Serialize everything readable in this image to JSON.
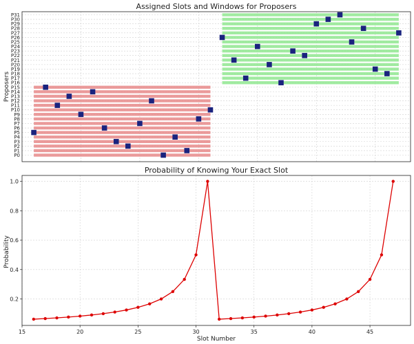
{
  "chart_data": [
    {
      "type": "scatter",
      "title": "Assigned Slots and Windows for Proposers",
      "xlabel": "",
      "ylabel": "Proposers",
      "xlim": [
        15,
        48
      ],
      "grid": true,
      "proposers": [
        "P0",
        "P1",
        "P2",
        "P3",
        "P4",
        "P5",
        "P6",
        "P7",
        "P8",
        "P9",
        "P10",
        "P11",
        "P12",
        "P13",
        "P14",
        "P15",
        "P16",
        "P17",
        "P18",
        "P19",
        "P20",
        "P21",
        "P22",
        "P23",
        "P24",
        "P25",
        "P26",
        "P27",
        "P28",
        "P29",
        "P30",
        "P31"
      ],
      "windows": [
        {
          "proposers_from": 0,
          "proposers_to": 15,
          "slot_from": 16,
          "slot_to": 31,
          "color": "#e88a8a"
        },
        {
          "proposers_from": 16,
          "proposers_to": 31,
          "slot_from": 32,
          "slot_to": 47,
          "color": "#90e890"
        }
      ],
      "assigned_slots": [
        27,
        29,
        24,
        23,
        28,
        16,
        22,
        25,
        30,
        20,
        31,
        18,
        26,
        19,
        21,
        17,
        37,
        34,
        46,
        45,
        36,
        33,
        39,
        38,
        35,
        43,
        32,
        47,
        44,
        40,
        41,
        42
      ],
      "marker_color": "#1a237e"
    },
    {
      "type": "line",
      "title": "Probability of Knowing Your Exact Slot",
      "xlabel": "Slot Number",
      "ylabel": "Probability",
      "xlim": [
        15,
        48.5
      ],
      "ylim": [
        0.02,
        1.04
      ],
      "xticks": [
        15,
        20,
        25,
        30,
        35,
        40,
        45
      ],
      "yticks": [
        0.2,
        0.4,
        0.6,
        0.8,
        1.0
      ],
      "grid": true,
      "color": "#dd0000",
      "x": [
        16,
        17,
        18,
        19,
        20,
        21,
        22,
        23,
        24,
        25,
        26,
        27,
        28,
        29,
        30,
        31,
        32,
        33,
        34,
        35,
        36,
        37,
        38,
        39,
        40,
        41,
        42,
        43,
        44,
        45,
        46,
        47
      ],
      "y": [
        0.0625,
        0.0667,
        0.0714,
        0.0769,
        0.0833,
        0.0909,
        0.1,
        0.1111,
        0.125,
        0.1429,
        0.1667,
        0.2,
        0.25,
        0.3333,
        0.5,
        1.0,
        0.0625,
        0.0667,
        0.0714,
        0.0769,
        0.0833,
        0.0909,
        0.1,
        0.1111,
        0.125,
        0.1429,
        0.1667,
        0.2,
        0.25,
        0.3333,
        0.5,
        1.0
      ]
    }
  ]
}
